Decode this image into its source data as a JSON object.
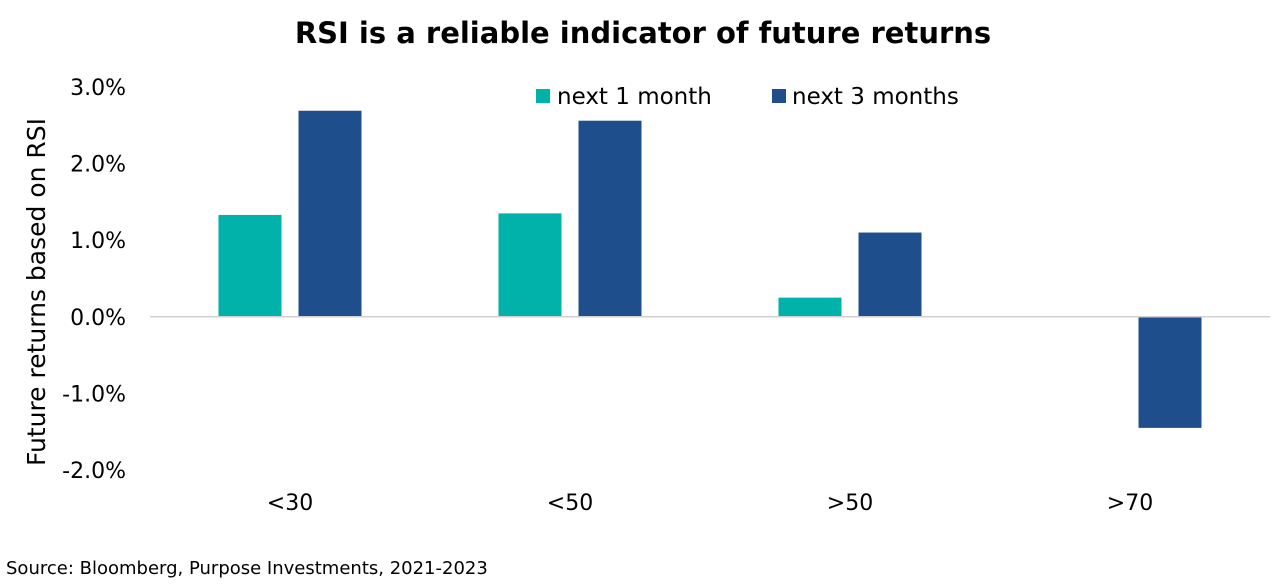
{
  "chart_data": {
    "type": "bar",
    "title": "RSI is a reliable indicator of future returns",
    "xlabel": "",
    "ylabel": "Future returns based on RSI",
    "categories": [
      "<30",
      "<50",
      ">50",
      ">70"
    ],
    "series": [
      {
        "name": "next 1 month",
        "color": "#00B2A9",
        "values": [
          1.33,
          1.35,
          0.25,
          0.0
        ]
      },
      {
        "name": "next 3 months",
        "color": "#1F4E8C",
        "values": [
          2.69,
          2.56,
          1.1,
          -1.45
        ]
      }
    ],
    "ylim": [
      -2.0,
      3.0
    ],
    "yticks": [
      3.0,
      2.0,
      1.0,
      0.0,
      -1.0,
      -2.0
    ],
    "ytick_labels": [
      "3.0%",
      "2.0%",
      "1.0%",
      "0.0%",
      "-1.0%",
      "-2.0%"
    ],
    "grid": false,
    "legend_position": "top-right",
    "source": "Source: Bloomberg, Purpose Investments, 2021-2023"
  }
}
